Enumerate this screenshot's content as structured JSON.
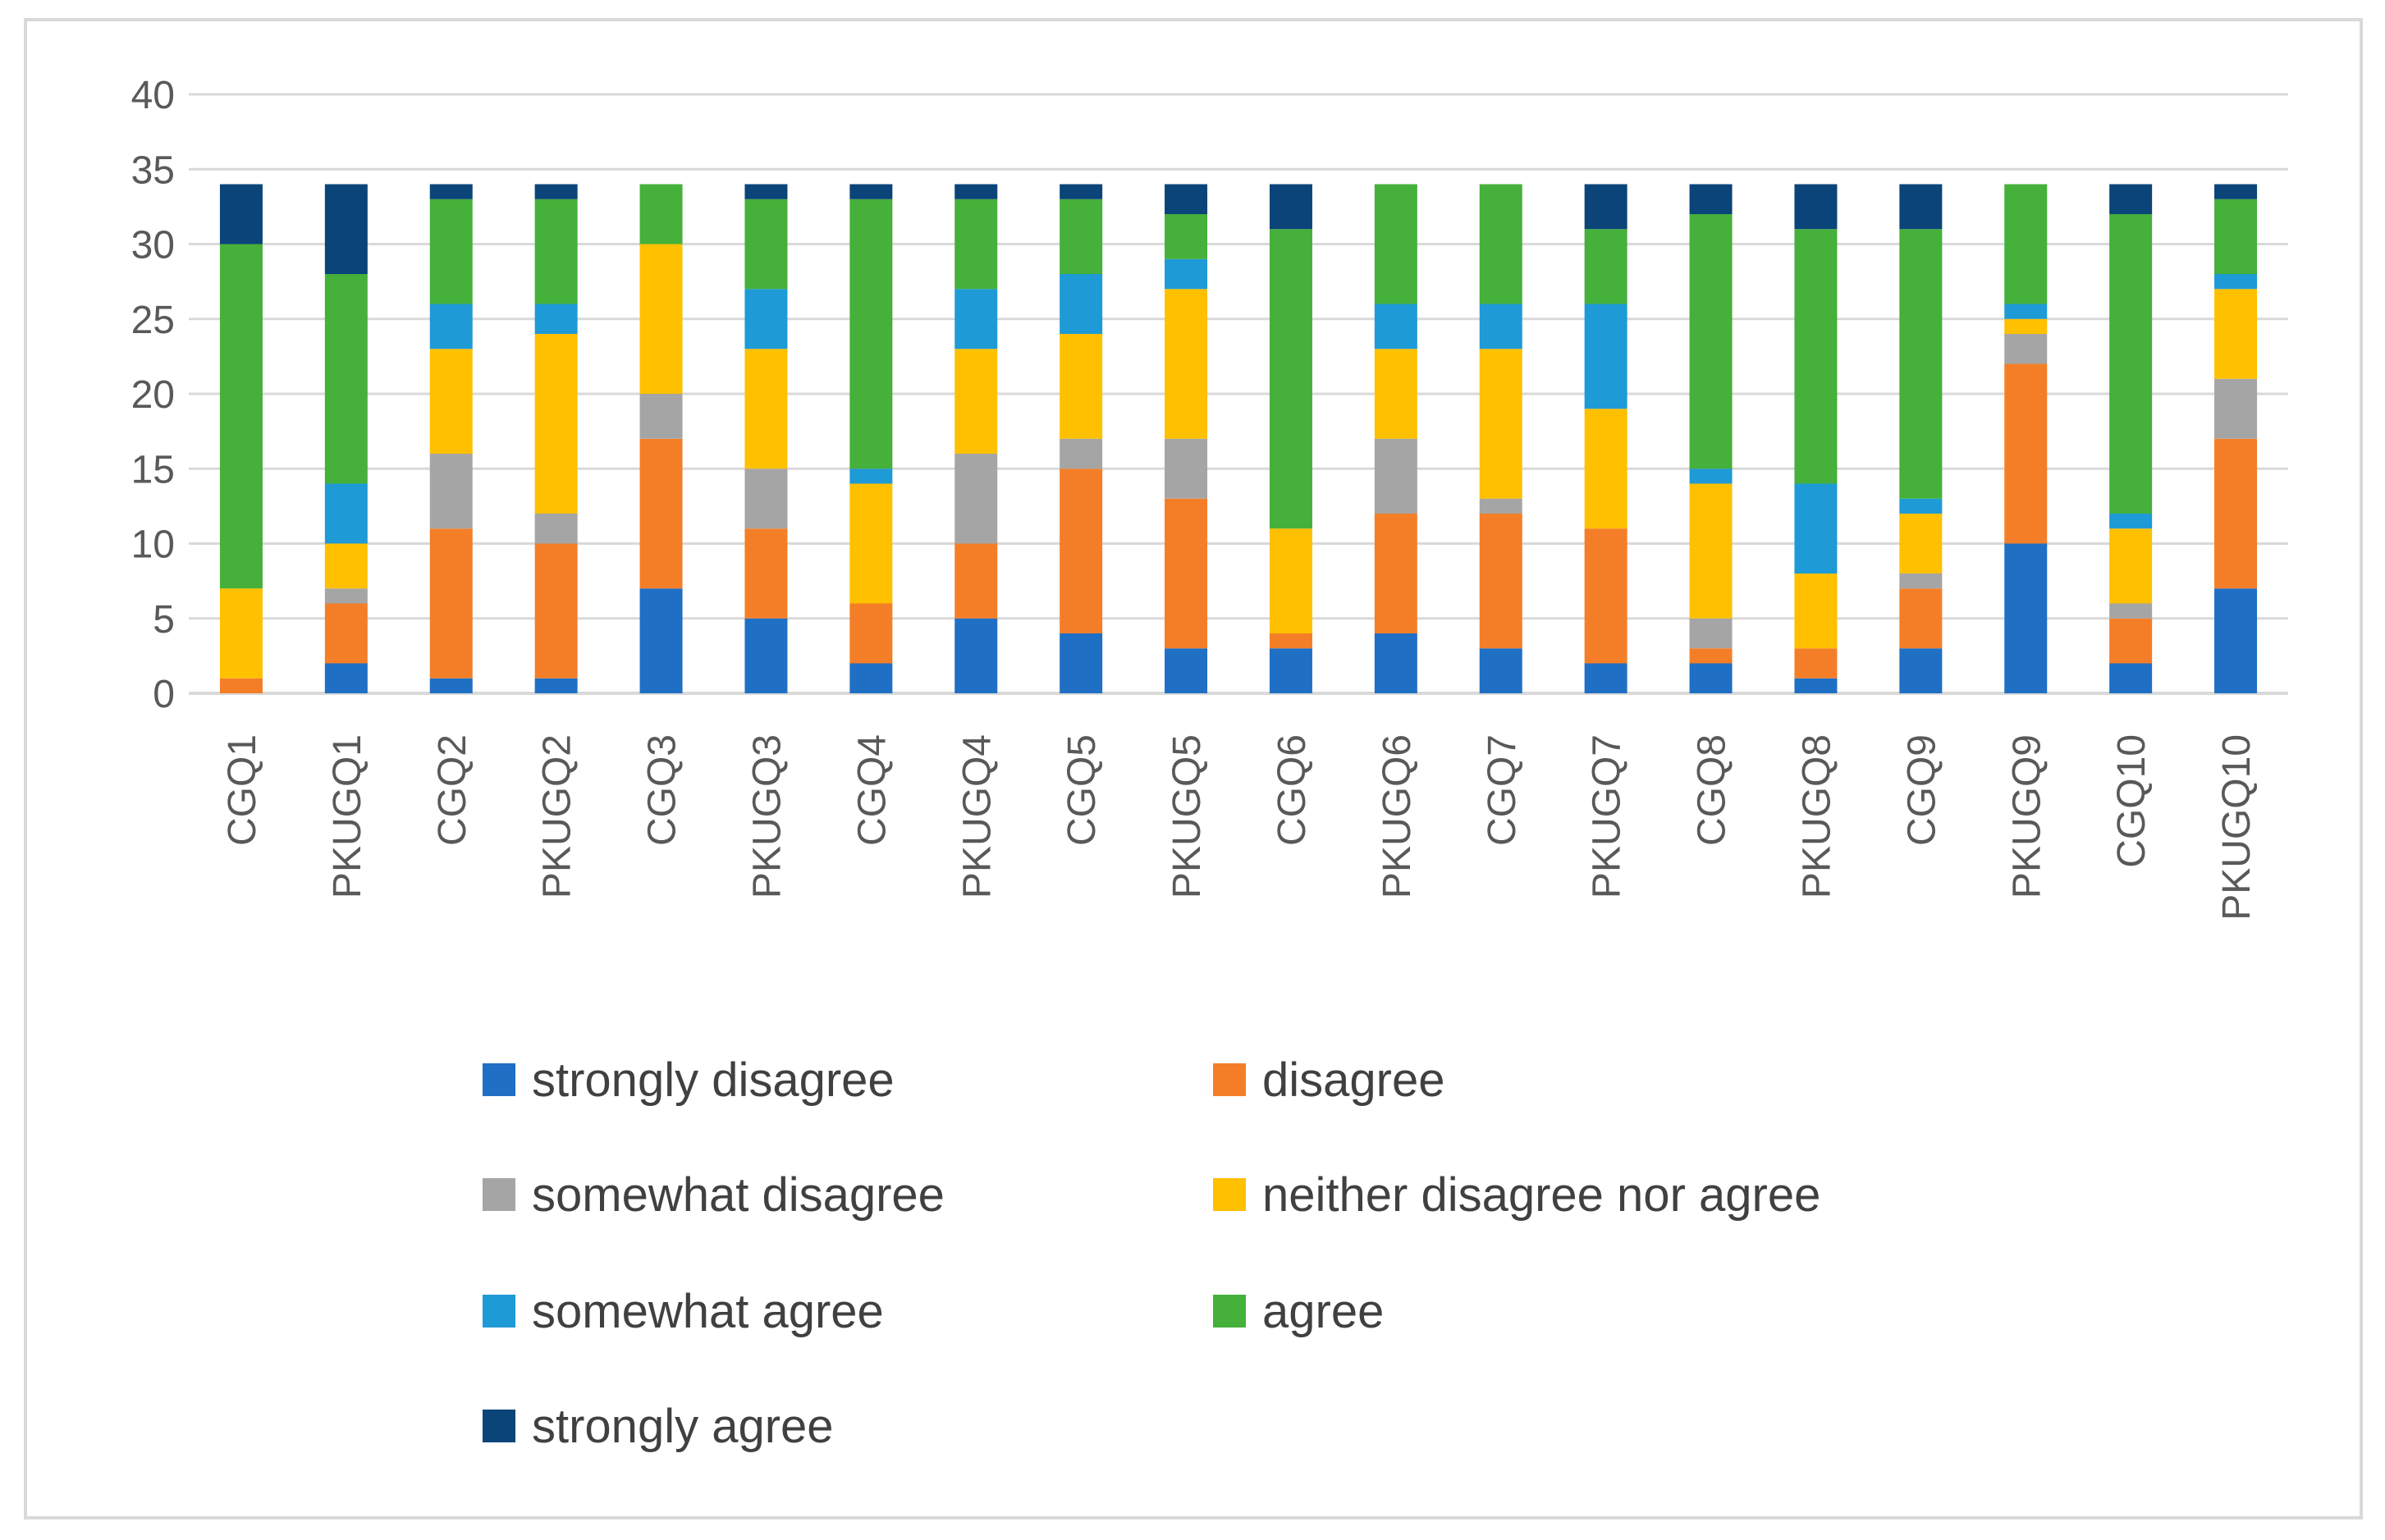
{
  "chart_data": {
    "type": "bar",
    "stacked": true,
    "title": "",
    "xlabel": "",
    "ylabel": "",
    "ylim": [
      0,
      40
    ],
    "yticks": [
      "0",
      "5",
      "10",
      "15",
      "20",
      "25",
      "30",
      "35",
      "40"
    ],
    "grid": true,
    "legend_position": "bottom",
    "categories": [
      "CGQ1",
      "PKUGQ1",
      "CGQ2",
      "PKUGQ2",
      "CGQ3",
      "PKUGQ3",
      "CGQ4",
      "PKUGQ4",
      "CGQ5",
      "PKUGQ5",
      "CGQ6",
      "PKUGQ6",
      "CGQ7",
      "PKUGQ7",
      "CGQ8",
      "PKUGQ8",
      "CGQ9",
      "PKUGQ9",
      "CGQ10",
      "PKUGQ10"
    ],
    "series": [
      {
        "name": "strongly disagree",
        "color": "#1F6FC5",
        "values": [
          0,
          2,
          1,
          1,
          7,
          5,
          2,
          5,
          4,
          3,
          3,
          4,
          3,
          2,
          2,
          1,
          3,
          10,
          2,
          7
        ]
      },
      {
        "name": "disagree",
        "color": "#F47E27",
        "values": [
          1,
          4,
          10,
          9,
          10,
          6,
          4,
          5,
          11,
          10,
          1,
          8,
          9,
          9,
          1,
          2,
          4,
          12,
          3,
          10
        ]
      },
      {
        "name": "somewhat disagree",
        "color": "#A5A5A5",
        "values": [
          0,
          1,
          5,
          2,
          3,
          4,
          0,
          6,
          2,
          4,
          0,
          5,
          1,
          0,
          2,
          0,
          1,
          2,
          1,
          4
        ]
      },
      {
        "name": "neither disagree nor agree",
        "color": "#FFC000",
        "values": [
          6,
          3,
          7,
          12,
          10,
          8,
          8,
          7,
          7,
          10,
          7,
          6,
          10,
          8,
          9,
          5,
          4,
          1,
          5,
          6
        ]
      },
      {
        "name": "somewhat agree",
        "color": "#1E9AD6",
        "values": [
          0,
          4,
          3,
          2,
          0,
          4,
          1,
          4,
          4,
          2,
          0,
          3,
          3,
          7,
          1,
          6,
          1,
          1,
          1,
          1
        ]
      },
      {
        "name": "agree",
        "color": "#45B03A",
        "values": [
          23,
          14,
          7,
          7,
          4,
          6,
          18,
          6,
          5,
          3,
          20,
          8,
          8,
          5,
          17,
          17,
          18,
          8,
          20,
          5
        ]
      },
      {
        "name": "strongly agree",
        "color": "#0B4478",
        "values": [
          4,
          6,
          1,
          1,
          0,
          1,
          1,
          1,
          1,
          2,
          3,
          0,
          0,
          3,
          2,
          3,
          3,
          0,
          2,
          1
        ]
      }
    ]
  }
}
